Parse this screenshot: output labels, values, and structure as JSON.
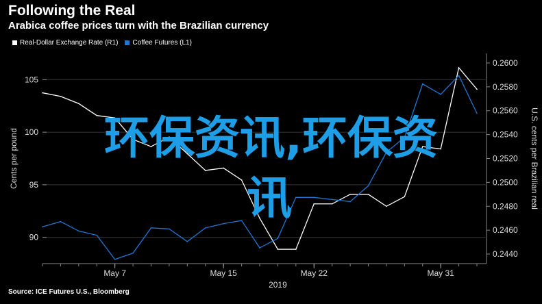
{
  "header": {
    "title": "Following the Real",
    "subtitle": "Arabica coffee prices turn with the Brazilian currency"
  },
  "legend": {
    "items": [
      {
        "label": "Real-Dollar Exchange Rate (R1)",
        "color": "#ffffff"
      },
      {
        "label": "Coffee Futures (L1)",
        "color": "#1f77d4"
      }
    ]
  },
  "source": "Source: ICE Futures U.S., Bloomberg",
  "overlay": {
    "line1": "环保资讯,环保资",
    "line2": "讯"
  },
  "chart_data": {
    "type": "line",
    "xlabel": "2019",
    "x_ticks": [
      "May 7",
      "May 15",
      "May 22",
      "May 31"
    ],
    "left_axis": {
      "label": "Cents per pound",
      "ticks": [
        90,
        95,
        100,
        105
      ],
      "range": [
        87.5,
        107.5
      ]
    },
    "right_axis": {
      "label": "U.S. cents per Brazilian real",
      "ticks": [
        "0.2440",
        "0.2460",
        "0.2480",
        "0.2500",
        "0.2520",
        "0.2540",
        "0.2560",
        "0.2580",
        "0.2600"
      ],
      "range": [
        0.2432,
        0.2608
      ]
    },
    "series": [
      {
        "name": "Real-Dollar Exchange Rate (R1)",
        "axis": "right",
        "color": "#ffffff",
        "x": [
          0,
          1,
          2,
          3,
          4,
          5,
          6,
          7,
          8,
          9,
          10,
          11,
          12,
          13,
          14,
          15,
          16,
          17,
          18,
          19,
          20,
          21,
          22,
          23,
          24
        ],
        "values": [
          0.2575,
          0.2572,
          0.2566,
          0.2556,
          0.2554,
          0.2536,
          0.253,
          0.2538,
          0.2524,
          0.251,
          0.2512,
          0.2502,
          0.247,
          0.2444,
          0.2444,
          0.2482,
          0.2482,
          0.249,
          0.249,
          0.248,
          0.2488,
          0.253,
          0.2528,
          0.2596,
          0.2578
        ]
      },
      {
        "name": "Coffee Futures (L1)",
        "axis": "left",
        "color": "#1f77d4",
        "x": [
          0,
          1,
          2,
          3,
          4,
          5,
          6,
          7,
          8,
          9,
          10,
          11,
          12,
          13,
          14,
          15,
          16,
          17,
          18,
          19,
          20,
          21,
          22,
          23,
          24
        ],
        "values": [
          91.0,
          91.5,
          90.6,
          90.2,
          87.9,
          88.5,
          90.9,
          90.8,
          89.6,
          90.9,
          91.3,
          91.6,
          89.0,
          89.9,
          93.8,
          93.8,
          93.6,
          93.4,
          94.9,
          98.1,
          99.5,
          104.6,
          103.6,
          105.4,
          101.8
        ]
      }
    ]
  }
}
